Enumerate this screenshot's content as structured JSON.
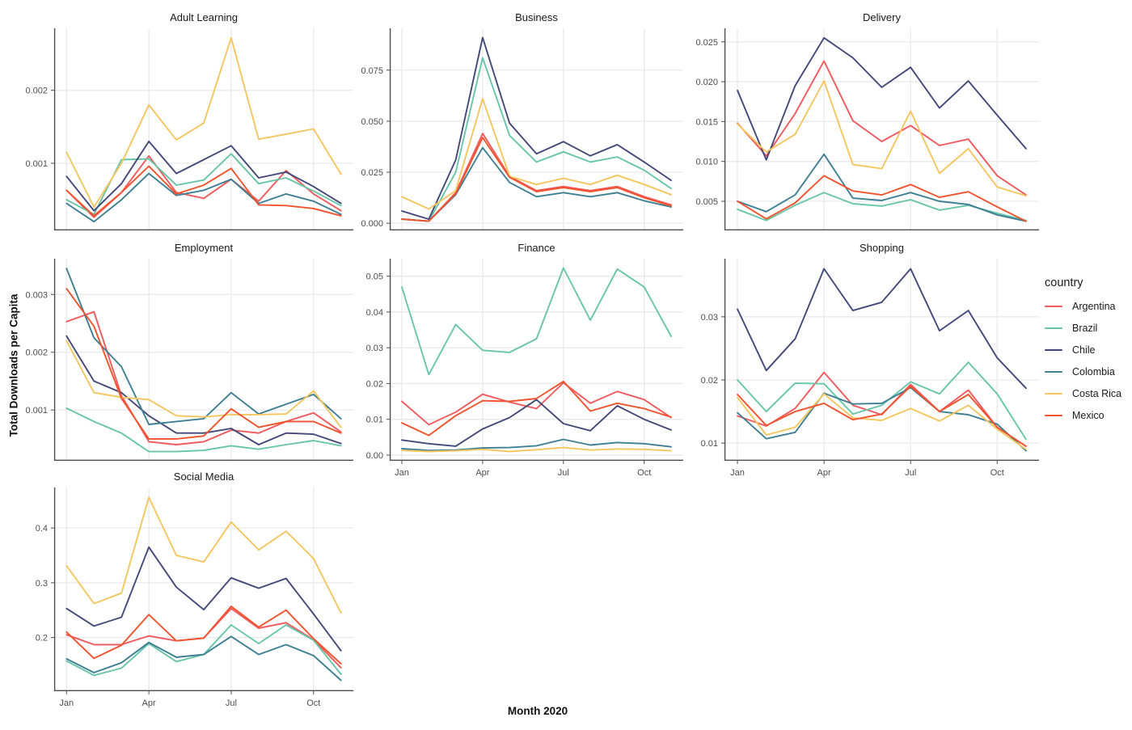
{
  "figure": {
    "y_axis_label": "Total Downloads per Capita",
    "x_axis_label": "Month 2020"
  },
  "style": {
    "background": "#FFFFFF",
    "gridline_color": "#E9E9E9",
    "axis_line_color": "#4D4D4D",
    "tick_text_color": "#4D4D4D",
    "title_text_color": "#1A1A1A"
  },
  "legend": {
    "title": "country",
    "items": [
      {
        "label": "Argentina",
        "color": "#F1595C"
      },
      {
        "label": "Brazil",
        "color": "#68C5A8"
      },
      {
        "label": "Chile",
        "color": "#434879"
      },
      {
        "label": "Colombia",
        "color": "#3E7F93"
      },
      {
        "label": "Costa Rica",
        "color": "#F5C55F"
      },
      {
        "label": "Mexico",
        "color": "#F0532D"
      }
    ]
  },
  "chart_data": {
    "type": "line",
    "x": [
      "Jan",
      "Feb",
      "Mar",
      "Apr",
      "May",
      "Jun",
      "Jul",
      "Aug",
      "Sep",
      "Oct",
      "Nov"
    ],
    "x_ticks_shown": [
      "Jan",
      "Apr",
      "Jul",
      "Oct"
    ],
    "legend_position": "right",
    "grid": true,
    "facets": [
      {
        "title": "Adult Learning",
        "ylim": [
          8e-05,
          0.00285
        ],
        "ytick_values": [
          0.001,
          0.002
        ],
        "ytick_labels": [
          "0.001",
          "0.002"
        ],
        "show_x_labels": false,
        "series": [
          {
            "name": "Argentina",
            "values": [
              0.00063,
              0.00026,
              0.0006,
              0.0011,
              0.0006,
              0.00052,
              0.00078,
              0.00048,
              0.0009,
              0.00058,
              0.00035
            ]
          },
          {
            "name": "Brazil",
            "values": [
              0.0005,
              0.0003,
              0.00105,
              0.00106,
              0.0007,
              0.00077,
              0.00113,
              0.00072,
              0.0008,
              0.00062,
              0.00042
            ]
          },
          {
            "name": "Chile",
            "values": [
              0.00082,
              0.00035,
              0.00072,
              0.0013,
              0.00086,
              0.00105,
              0.00124,
              0.0008,
              0.00088,
              0.00068,
              0.00045
            ]
          },
          {
            "name": "Colombia",
            "values": [
              0.00045,
              0.0002,
              0.0005,
              0.00086,
              0.00056,
              0.00063,
              0.00078,
              0.00045,
              0.00058,
              0.00048,
              0.0003
            ]
          },
          {
            "name": "Costa Rica",
            "values": [
              0.00115,
              0.0004,
              0.001,
              0.0018,
              0.00132,
              0.00155,
              0.00272,
              0.00133,
              0.0014,
              0.00147,
              0.00085
            ]
          },
          {
            "name": "Mexico",
            "values": [
              0.00063,
              0.00028,
              0.0006,
              0.00096,
              0.00058,
              0.0007,
              0.00093,
              0.00043,
              0.00042,
              0.00038,
              0.00028
            ]
          }
        ]
      },
      {
        "title": "Business",
        "ylim": [
          -0.0035,
          0.0955
        ],
        "ytick_values": [
          0.0,
          0.025,
          0.05,
          0.075
        ],
        "ytick_labels": [
          "0.000",
          "0.025",
          "0.050",
          "0.075"
        ],
        "show_x_labels": false,
        "series": [
          {
            "name": "Argentina",
            "values": [
              0.002,
              0.001,
              0.015,
              0.044,
              0.023,
              0.016,
              0.018,
              0.016,
              0.018,
              0.013,
              0.009
            ]
          },
          {
            "name": "Brazil",
            "values": [
              0.002,
              0.001,
              0.025,
              0.081,
              0.043,
              0.03,
              0.035,
              0.03,
              0.0325,
              0.026,
              0.017
            ]
          },
          {
            "name": "Chile",
            "values": [
              0.006,
              0.002,
              0.031,
              0.091,
              0.049,
              0.034,
              0.04,
              0.033,
              0.0385,
              0.03,
              0.021
            ]
          },
          {
            "name": "Colombia",
            "values": [
              0.002,
              0.001,
              0.014,
              0.037,
              0.02,
              0.013,
              0.015,
              0.013,
              0.015,
              0.011,
              0.008
            ]
          },
          {
            "name": "Costa Rica",
            "values": [
              0.013,
              0.007,
              0.016,
              0.061,
              0.023,
              0.019,
              0.022,
              0.019,
              0.0235,
              0.019,
              0.014
            ]
          },
          {
            "name": "Mexico",
            "values": [
              0.002,
              0.001,
              0.0145,
              0.042,
              0.0225,
              0.0155,
              0.0175,
              0.0155,
              0.0175,
              0.0125,
              0.0085
            ]
          }
        ]
      },
      {
        "title": "Delivery",
        "ylim": [
          0.00135,
          0.0267
        ],
        "ytick_values": [
          0.005,
          0.01,
          0.015,
          0.02,
          0.025
        ],
        "ytick_labels": [
          "0.005",
          "0.010",
          "0.015",
          "0.020",
          "0.025"
        ],
        "show_x_labels": false,
        "series": [
          {
            "name": "Argentina",
            "values": [
              0.0148,
              0.0107,
              0.016,
              0.0226,
              0.0151,
              0.0125,
              0.0145,
              0.012,
              0.0128,
              0.0082,
              0.0058
            ]
          },
          {
            "name": "Brazil",
            "values": [
              0.004,
              0.0026,
              0.0045,
              0.0061,
              0.0047,
              0.0044,
              0.0052,
              0.0039,
              0.0045,
              0.0035,
              0.0026
            ]
          },
          {
            "name": "Chile",
            "values": [
              0.0189,
              0.0102,
              0.0195,
              0.0255,
              0.023,
              0.0193,
              0.0218,
              0.0167,
              0.0201,
              0.0158,
              0.0116
            ]
          },
          {
            "name": "Colombia",
            "values": [
              0.005,
              0.0037,
              0.0058,
              0.0109,
              0.0054,
              0.0051,
              0.0061,
              0.005,
              0.0046,
              0.0033,
              0.0025
            ]
          },
          {
            "name": "Costa Rica",
            "values": [
              0.0147,
              0.0112,
              0.0134,
              0.0201,
              0.0096,
              0.0091,
              0.0163,
              0.0085,
              0.0116,
              0.0068,
              0.0057
            ]
          },
          {
            "name": "Mexico",
            "values": [
              0.005,
              0.0028,
              0.0048,
              0.0082,
              0.0063,
              0.0058,
              0.0071,
              0.0055,
              0.0062,
              0.0043,
              0.0025
            ]
          }
        ]
      },
      {
        "title": "Employment",
        "ylim": [
          0.00012,
          0.00362
        ],
        "ytick_values": [
          0.001,
          0.002,
          0.003
        ],
        "ytick_labels": [
          "0.001",
          "0.002",
          "0.003"
        ],
        "show_x_labels": false,
        "series": [
          {
            "name": "Argentina",
            "values": [
              0.00253,
              0.0027,
              0.00125,
              0.00045,
              0.0004,
              0.00045,
              0.00065,
              0.0006,
              0.0008,
              0.00095,
              0.00062
            ]
          },
          {
            "name": "Brazil",
            "values": [
              0.00103,
              0.0008,
              0.0006,
              0.00028,
              0.00028,
              0.0003,
              0.00038,
              0.00032,
              0.0004,
              0.00047,
              0.00038
            ]
          },
          {
            "name": "Chile",
            "values": [
              0.00228,
              0.0015,
              0.0013,
              0.0009,
              0.0006,
              0.0006,
              0.00068,
              0.0004,
              0.0006,
              0.00058,
              0.00042
            ]
          },
          {
            "name": "Colombia",
            "values": [
              0.00345,
              0.00225,
              0.00175,
              0.00075,
              0.0008,
              0.00085,
              0.0013,
              0.00093,
              0.0011,
              0.00127,
              0.00085
            ]
          },
          {
            "name": "Costa Rica",
            "values": [
              0.0022,
              0.0013,
              0.00122,
              0.00118,
              0.0009,
              0.00088,
              0.00092,
              0.00092,
              0.00093,
              0.00133,
              0.0007
            ]
          },
          {
            "name": "Mexico",
            "values": [
              0.0031,
              0.00245,
              0.0012,
              0.0005,
              0.0005,
              0.00055,
              0.00102,
              0.0007,
              0.0008,
              0.0008,
              0.0006
            ]
          }
        ]
      },
      {
        "title": "Finance",
        "ylim": [
          -0.0016,
          0.0549
        ],
        "ytick_values": [
          0.0,
          0.01,
          0.02,
          0.03,
          0.04,
          0.05
        ],
        "ytick_labels": [
          "0.00",
          "0.01",
          "0.02",
          "0.03",
          "0.04",
          "0.05"
        ],
        "show_x_labels": true,
        "series": [
          {
            "name": "Argentina",
            "values": [
              0.015,
              0.0085,
              0.012,
              0.017,
              0.0148,
              0.013,
              0.0202,
              0.0145,
              0.0178,
              0.0155,
              0.0105
            ]
          },
          {
            "name": "Brazil",
            "values": [
              0.047,
              0.0225,
              0.0365,
              0.0293,
              0.0287,
              0.0325,
              0.0523,
              0.0377,
              0.052,
              0.047,
              0.0332
            ]
          },
          {
            "name": "Chile",
            "values": [
              0.0042,
              0.0032,
              0.0025,
              0.0073,
              0.0105,
              0.0155,
              0.0088,
              0.0068,
              0.0138,
              0.01,
              0.007
            ]
          },
          {
            "name": "Colombia",
            "values": [
              0.0018,
              0.0013,
              0.0014,
              0.002,
              0.0021,
              0.0026,
              0.0044,
              0.0028,
              0.0035,
              0.0032,
              0.0023
            ]
          },
          {
            "name": "Costa Rica",
            "values": [
              0.0013,
              0.001,
              0.0012,
              0.0016,
              0.001,
              0.0015,
              0.0021,
              0.0014,
              0.0017,
              0.0016,
              0.0012
            ]
          },
          {
            "name": "Mexico",
            "values": [
              0.009,
              0.0055,
              0.011,
              0.0152,
              0.015,
              0.0158,
              0.0206,
              0.0123,
              0.0145,
              0.013,
              0.0106
            ]
          }
        ]
      },
      {
        "title": "Shopping",
        "ylim": [
          0.0072,
          0.0392
        ],
        "ytick_values": [
          0.01,
          0.02,
          0.03
        ],
        "ytick_labels": [
          "0.01",
          "0.02",
          "0.03"
        ],
        "show_x_labels": true,
        "series": [
          {
            "name": "Argentina",
            "values": [
              0.0143,
              0.0127,
              0.0155,
              0.0212,
              0.016,
              0.0145,
              0.0193,
              0.015,
              0.0184,
              0.0125,
              0.0095
            ]
          },
          {
            "name": "Brazil",
            "values": [
              0.02,
              0.015,
              0.0195,
              0.0194,
              0.0146,
              0.016,
              0.0197,
              0.0178,
              0.0228,
              0.0178,
              0.0106
            ]
          },
          {
            "name": "Chile",
            "values": [
              0.0312,
              0.0215,
              0.0265,
              0.0376,
              0.031,
              0.0323,
              0.0376,
              0.0278,
              0.031,
              0.0235,
              0.0187
            ]
          },
          {
            "name": "Colombia",
            "values": [
              0.0148,
              0.0107,
              0.0117,
              0.0179,
              0.0162,
              0.0163,
              0.0188,
              0.015,
              0.0145,
              0.013,
              0.0088
            ]
          },
          {
            "name": "Costa Rica",
            "values": [
              0.0172,
              0.0113,
              0.0125,
              0.0178,
              0.014,
              0.0136,
              0.0155,
              0.0135,
              0.016,
              0.0122,
              0.009
            ]
          },
          {
            "name": "Mexico",
            "values": [
              0.0177,
              0.0128,
              0.015,
              0.0163,
              0.0137,
              0.0146,
              0.019,
              0.015,
              0.0177,
              0.0125,
              0.0095
            ]
          }
        ]
      },
      {
        "title": "Social Media",
        "ylim": [
          0.102,
          0.474
        ],
        "ytick_values": [
          0.2,
          0.3,
          0.4
        ],
        "ytick_labels": [
          "0.2",
          "0.3",
          "0.4"
        ],
        "show_x_labels": true,
        "series": [
          {
            "name": "Argentina",
            "values": [
              0.205,
              0.187,
              0.187,
              0.203,
              0.194,
              0.199,
              0.253,
              0.217,
              0.227,
              0.196,
              0.145
            ]
          },
          {
            "name": "Brazil",
            "values": [
              0.157,
              0.131,
              0.144,
              0.189,
              0.156,
              0.169,
              0.223,
              0.189,
              0.223,
              0.195,
              0.133
            ]
          },
          {
            "name": "Chile",
            "values": [
              0.253,
              0.221,
              0.237,
              0.365,
              0.292,
              0.251,
              0.309,
              0.29,
              0.308,
              0.243,
              0.176
            ]
          },
          {
            "name": "Colombia",
            "values": [
              0.161,
              0.136,
              0.154,
              0.191,
              0.164,
              0.169,
              0.202,
              0.169,
              0.187,
              0.167,
              0.122
            ]
          },
          {
            "name": "Costa Rica",
            "values": [
              0.331,
              0.262,
              0.281,
              0.456,
              0.35,
              0.338,
              0.411,
              0.36,
              0.394,
              0.344,
              0.245
            ]
          },
          {
            "name": "Mexico",
            "values": [
              0.21,
              0.162,
              0.186,
              0.242,
              0.194,
              0.199,
              0.257,
              0.219,
              0.25,
              0.198,
              0.152
            ]
          }
        ]
      }
    ]
  }
}
